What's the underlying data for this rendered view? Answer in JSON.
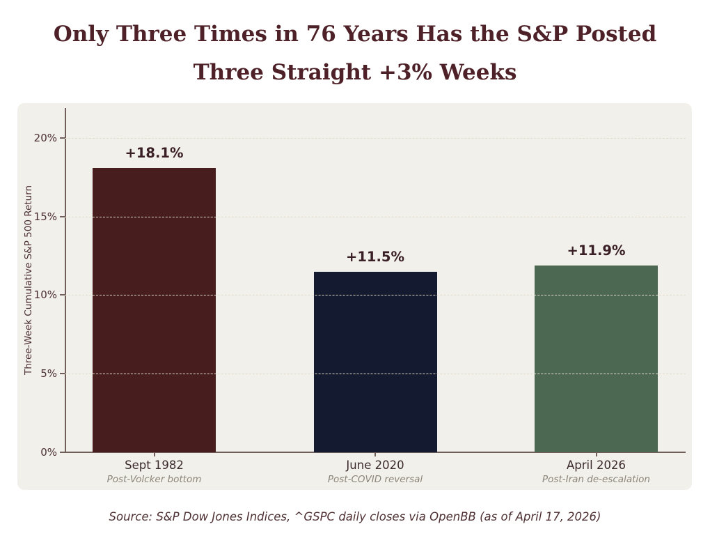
{
  "title": {
    "line1": "Only Three Times in 76 Years Has the S&P Posted",
    "line2": "Three Straight +3% Weeks",
    "color": "#4d2127"
  },
  "source": {
    "text": "Source: S&P Dow Jones Indices, ^GSPC daily closes via OpenBB (as of April 17, 2026)"
  },
  "colors": {
    "page_background": "#ffffff",
    "panel_background": "#f2f0ea",
    "spine": "#6f5e59",
    "gridline": "#e2dccf",
    "value_label": "#3a2026",
    "tick_label": "#4b2e33"
  },
  "chart_data": {
    "type": "bar",
    "title": "Only Three Times in 76 Years Has the S&P Posted Three Straight +3% Weeks",
    "xlabel": "",
    "ylabel": "Three-Week Cumulative S&P 500 Return",
    "ylim": [
      0,
      21.9
    ],
    "yticks": [
      0,
      5,
      10,
      15,
      20
    ],
    "ytick_labels": [
      "0%",
      "5%",
      "10%",
      "15%",
      "20%"
    ],
    "grid": "horizontal-dashed",
    "legend": "none",
    "categories": [
      "Sept 1982",
      "June 2020",
      "April 2026"
    ],
    "category_sublabels": [
      "Post-Volcker bottom",
      "Post-COVID reversal",
      "Post-Iran de-escalation"
    ],
    "values": [
      18.1,
      11.5,
      11.9
    ],
    "value_labels": [
      "+18.1%",
      "+11.5%",
      "+11.9%"
    ],
    "bar_colors": [
      "#471d1d",
      "#141a30",
      "#4c6853"
    ],
    "source": "Source: S&P Dow Jones Indices, ^GSPC daily closes via OpenBB (as of April 17, 2026)"
  }
}
